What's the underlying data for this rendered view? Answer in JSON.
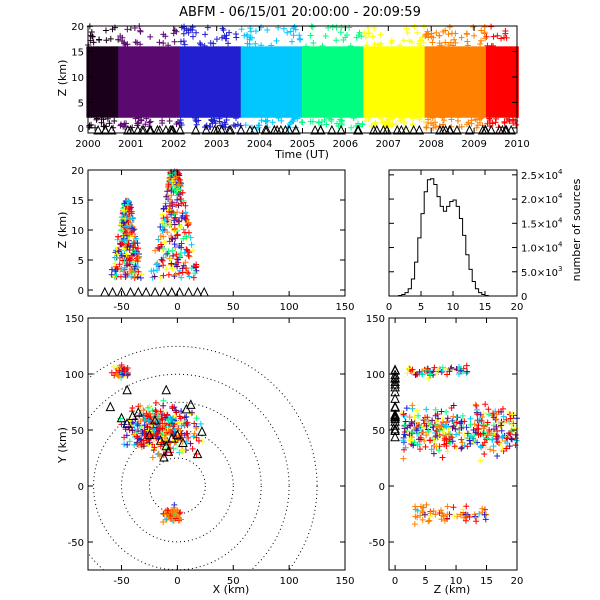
{
  "title": "ABFM - 06/15/01 20:00:00 - 20:09:59",
  "chart_data": [
    {
      "type": "scatter",
      "panel": "time-height",
      "xlabel": "Time (UT)",
      "ylabel": "Z (km)",
      "xlim": [
        2000,
        2010
      ],
      "ylim": [
        -1,
        20
      ],
      "xticks": [
        "2000",
        "2001",
        "2002",
        "2003",
        "2004",
        "2005",
        "2006",
        "2007",
        "2008",
        "2009",
        "2010"
      ],
      "yticks": [
        "0",
        "5",
        "10",
        "15",
        "20"
      ],
      "color_by": "time",
      "colormap": [
        "#1a001a",
        "#5a0a6e",
        "#2020d0",
        "#00c8ff",
        "#00ff80",
        "#ffff00",
        "#ff8000",
        "#ff0000"
      ],
      "density_core_z": [
        2,
        16
      ]
    },
    {
      "type": "scatter",
      "panel": "x-z",
      "xlabel": "",
      "ylabel": "Z (km)",
      "xlim": [
        -80,
        150
      ],
      "ylim": [
        -1,
        20
      ],
      "xticks": [
        "-50",
        "0",
        "50",
        "100",
        "150"
      ],
      "yticks": [
        "0",
        "5",
        "10",
        "15",
        "20"
      ],
      "clusters": [
        {
          "x": [
            -60,
            -30
          ],
          "z": [
            2,
            15
          ]
        },
        {
          "x": [
            -25,
            20
          ],
          "z": [
            2,
            20
          ]
        }
      ],
      "stations_x": [
        -65,
        -58,
        -50,
        -42,
        -35,
        -28,
        -20,
        -12,
        -5,
        2,
        10,
        18,
        24
      ]
    },
    {
      "type": "bar",
      "panel": "altitude-histogram",
      "xlabel": "",
      "ylabel": "number of sources",
      "xlim": [
        0,
        20
      ],
      "ylim": [
        0,
        26000
      ],
      "xticks": [
        "0",
        "5",
        "10",
        "15",
        "20"
      ],
      "ytick_values": [
        0,
        5000,
        10000,
        15000,
        20000,
        25000
      ],
      "ytick_labels": [
        {
          "mantissa": "0",
          "exp": ""
        },
        {
          "mantissa": "5.0×10",
          "exp": "3"
        },
        {
          "mantissa": "1.0×10",
          "exp": "4"
        },
        {
          "mantissa": "1.5×10",
          "exp": "4"
        },
        {
          "mantissa": "2.0×10",
          "exp": "4"
        },
        {
          "mantissa": "2.5×10",
          "exp": "4"
        }
      ],
      "bin_width": 0.5,
      "bin_start": 1.5,
      "values": [
        100,
        300,
        700,
        1500,
        3500,
        7000,
        12000,
        17000,
        21500,
        24000,
        24200,
        23000,
        20500,
        18500,
        17500,
        18500,
        19500,
        19800,
        18500,
        16000,
        12500,
        8500,
        5500,
        3000,
        1500,
        700,
        300,
        100
      ]
    },
    {
      "type": "scatter",
      "panel": "plan-view",
      "xlabel": "X (km)",
      "ylabel": "Y (km)",
      "xlim": [
        -80,
        150
      ],
      "ylim": [
        -75,
        150
      ],
      "xticks": [
        "-50",
        "0",
        "50",
        "100",
        "150"
      ],
      "yticks": [
        "-50",
        "0",
        "50",
        "100",
        "150"
      ],
      "range_rings_km": [
        25,
        50,
        75,
        100,
        125
      ],
      "ring_center": [
        0,
        0
      ],
      "clusters": [
        {
          "x": [
            -60,
            30
          ],
          "y": [
            20,
            80
          ]
        },
        {
          "x": [
            -60,
            -40
          ],
          "y": [
            95,
            110
          ]
        },
        {
          "x": [
            -15,
            5
          ],
          "y": [
            -35,
            -15
          ]
        }
      ],
      "stations": [
        [
          -60,
          70
        ],
        [
          -50,
          60
        ],
        [
          -45,
          55
        ],
        [
          -40,
          62
        ],
        [
          -35,
          65
        ],
        [
          -20,
          58
        ],
        [
          -25,
          45
        ],
        [
          -15,
          40
        ],
        [
          -10,
          35
        ],
        [
          -5,
          42
        ],
        [
          0,
          45
        ],
        [
          5,
          38
        ],
        [
          -12,
          25
        ],
        [
          -8,
          30
        ],
        [
          8,
          68
        ],
        [
          12,
          72
        ],
        [
          -45,
          85
        ],
        [
          -10,
          85
        ],
        [
          22,
          48
        ],
        [
          18,
          28
        ]
      ]
    },
    {
      "type": "scatter",
      "panel": "z-y",
      "xlabel": "Z (km)",
      "ylabel": "",
      "xlim": [
        -1,
        20
      ],
      "ylim": [
        -75,
        150
      ],
      "xticks": [
        "0",
        "5",
        "10",
        "15",
        "20"
      ],
      "yticks": [
        "-50",
        "0",
        "50",
        "100",
        "150"
      ],
      "clusters": [
        {
          "z": [
            1,
            20
          ],
          "y": [
            20,
            80
          ]
        },
        {
          "z": [
            2,
            12
          ],
          "y": [
            95,
            110
          ]
        },
        {
          "z": [
            3,
            15
          ],
          "y": [
            -35,
            -15
          ]
        }
      ]
    }
  ]
}
